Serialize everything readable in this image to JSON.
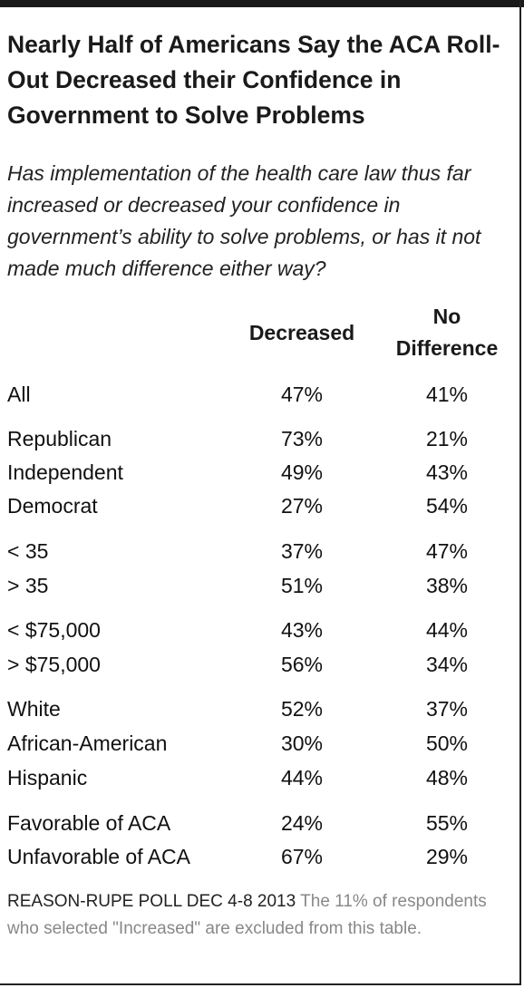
{
  "chart_data": {
    "type": "table",
    "title": "Nearly Half of Americans Say the ACA Roll-Out Decreased their Confidence in Government to Solve Problems",
    "subtitle": "Has implementation of the health care law thus far increased or decreased your confidence in government’s ability to solve problems, or has it not made much difference either way?",
    "columns": [
      "Decreased",
      "No Difference"
    ],
    "column_heads": {
      "decreased": "Decreased",
      "no_difference_line1": "No",
      "no_difference_line2": "Difference"
    },
    "rows": [
      {
        "label": "All",
        "decreased": "47%",
        "no_difference": "41%"
      },
      {
        "label": "Republican",
        "decreased": "73%",
        "no_difference": "21%"
      },
      {
        "label": "Independent",
        "decreased": "49%",
        "no_difference": "43%"
      },
      {
        "label": "Democrat",
        "decreased": "27%",
        "no_difference": "54%"
      },
      {
        "label": "< 35",
        "decreased": "37%",
        "no_difference": "47%"
      },
      {
        "label": "> 35",
        "decreased": "51%",
        "no_difference": "38%"
      },
      {
        "label": "< $75,000",
        "decreased": "43%",
        "no_difference": "44%"
      },
      {
        "label": "> $75,000",
        "decreased": "56%",
        "no_difference": "34%"
      },
      {
        "label": "White",
        "decreased": "52%",
        "no_difference": "37%"
      },
      {
        "label": "African-American",
        "decreased": "30%",
        "no_difference": "50%"
      },
      {
        "label": "Hispanic",
        "decreased": "44%",
        "no_difference": "48%"
      },
      {
        "label": "Favorable of ACA",
        "decreased": "24%",
        "no_difference": "55%"
      },
      {
        "label": "Unfavorable of ACA",
        "decreased": "67%",
        "no_difference": "29%"
      }
    ]
  },
  "footer": {
    "source": "REASON-RUPE POLL DEC 4-8 2013",
    "note": "The 11% of respondents who selected \"Increased\" are excluded from this table."
  },
  "colors": {
    "text": "#1a1a1a",
    "note": "#888888",
    "rule": "#1a1a1a"
  }
}
